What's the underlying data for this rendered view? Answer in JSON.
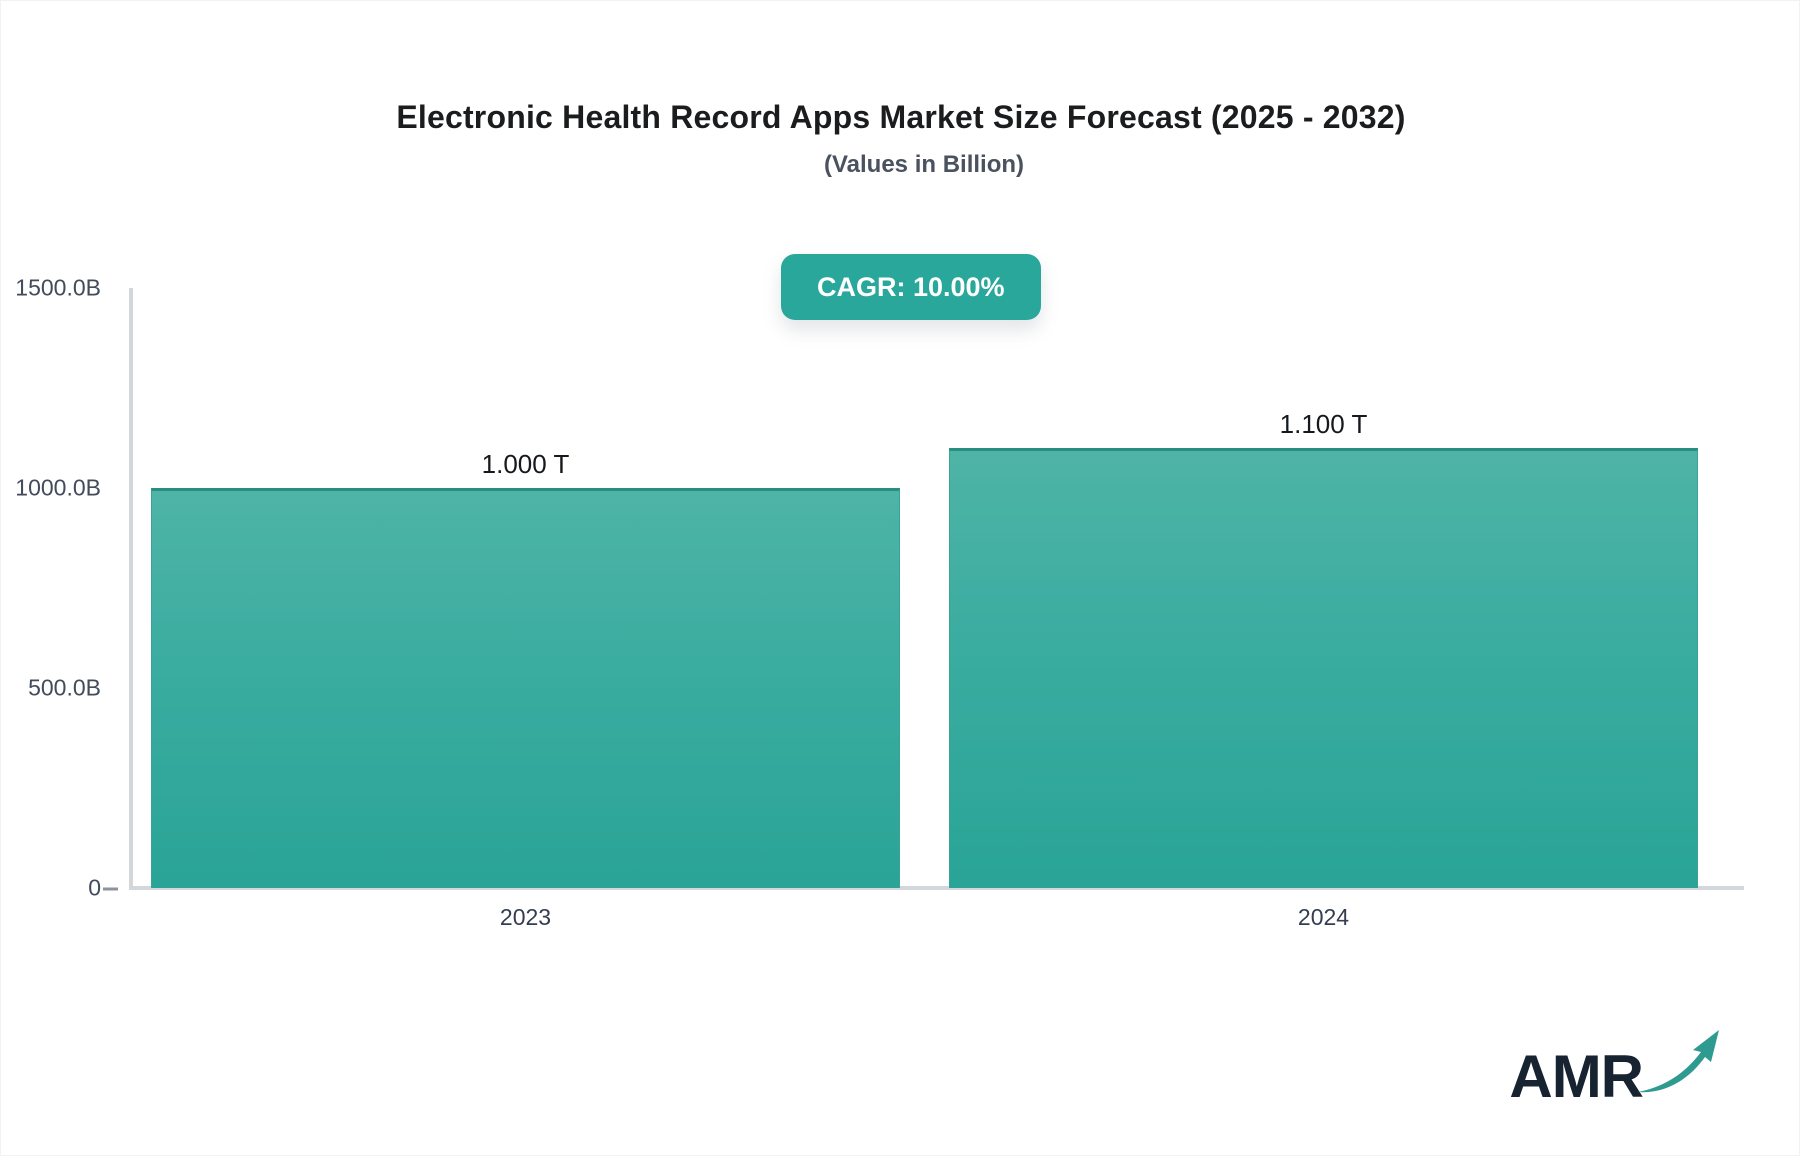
{
  "header": {
    "title": "Electronic Health Record Apps Market Size Forecast (2025 - 2032)",
    "subtitle": "(Values in Billion)",
    "cagr_badge": "CAGR: 10.00%"
  },
  "colors": {
    "badge_bg": "#2aa79b",
    "bar_top": "#4eb4a6",
    "bar_bottom": "#29a496",
    "bar_border": "#2a8d82",
    "axis_line": "#d3d7dc",
    "logo_arrow": "#2f9a8f"
  },
  "chart_data": {
    "type": "bar",
    "title": "Electronic Health Record Apps Market Size Forecast (2025 - 2032)",
    "subtitle": "(Values in Billion)",
    "categories": [
      "2023",
      "2024"
    ],
    "values": [
      1000.0,
      1100.0
    ],
    "value_labels": [
      "1.000 T",
      "1.100 T"
    ],
    "unit": "Billion USD",
    "cagr_pct": 10.0,
    "xlabel": "",
    "ylabel": "",
    "ylim": [
      0,
      1500
    ],
    "y_ticks": [
      {
        "label": "1500.0B",
        "value": 1500
      },
      {
        "label": "1000.0B",
        "value": 1000
      },
      {
        "label": "500.0B",
        "value": 500
      },
      {
        "label": "0",
        "value": 0
      }
    ],
    "grid": false,
    "legend": "none"
  },
  "logo": {
    "text": "AMR",
    "icon": "trend-arrow-icon"
  }
}
